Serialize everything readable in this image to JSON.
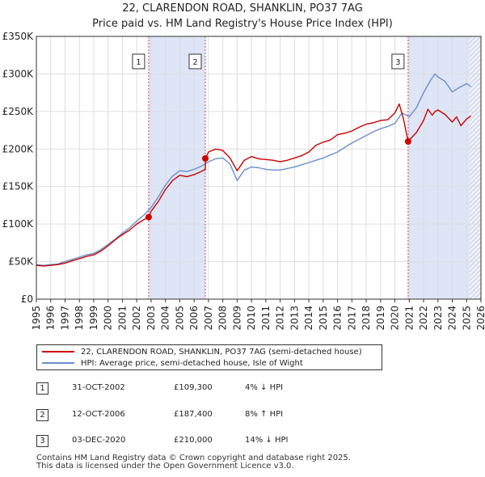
{
  "chart_data": {
    "type": "line",
    "title": "22, CLARENDON ROAD, SHANKLIN, PO37 7AG",
    "subtitle": "Price paid vs. HM Land Registry's House Price Index (HPI)",
    "xlim": [
      1995,
      2026
    ],
    "ylim": [
      0,
      350000
    ],
    "x_ticks": [
      1995,
      1996,
      1997,
      1998,
      1999,
      2000,
      2001,
      2002,
      2003,
      2004,
      2005,
      2006,
      2007,
      2008,
      2009,
      2010,
      2011,
      2012,
      2013,
      2014,
      2015,
      2016,
      2017,
      2018,
      2019,
      2020,
      2021,
      2022,
      2023,
      2024,
      2025,
      2026
    ],
    "y_ticks": [
      {
        "value": 0,
        "label": "£0"
      },
      {
        "value": 50000,
        "label": "£50K"
      },
      {
        "value": 100000,
        "label": "£100K"
      },
      {
        "value": 150000,
        "label": "£150K"
      },
      {
        "value": 200000,
        "label": "£200K"
      },
      {
        "value": 250000,
        "label": "£250K"
      },
      {
        "value": 300000,
        "label": "£300K"
      },
      {
        "value": 350000,
        "label": "£350K"
      }
    ],
    "grid": true,
    "hatch_from": 2025.2,
    "colors": {
      "property": "#cc0000",
      "hpi": "#6b8fcf",
      "shade": "#dde5f7",
      "vline": "#cc4466"
    },
    "shaded_periods": [
      [
        2002.83,
        2006.78
      ],
      [
        2020.92,
        2025.2
      ]
    ],
    "series": [
      {
        "name": "22, CLARENDON ROAD, SHANKLIN, PO37 7AG (semi-detached house)",
        "color": "#cc0000",
        "x": [
          1995.0,
          1995.5,
          1996.0,
          1996.5,
          1997.0,
          1997.5,
          1998.0,
          1998.5,
          1999.0,
          1999.5,
          2000.0,
          2000.5,
          2001.0,
          2001.5,
          2002.0,
          2002.5,
          2002.83,
          2003.0,
          2003.5,
          2004.0,
          2004.5,
          2005.0,
          2005.5,
          2006.0,
          2006.5,
          2006.78,
          2006.79,
          2007.0,
          2007.5,
          2008.0,
          2008.5,
          2009.0,
          2009.5,
          2010.0,
          2010.5,
          2011.0,
          2011.5,
          2012.0,
          2012.5,
          2013.0,
          2013.5,
          2014.0,
          2014.5,
          2015.0,
          2015.5,
          2016.0,
          2016.5,
          2017.0,
          2017.5,
          2018.0,
          2018.5,
          2019.0,
          2019.5,
          2020.0,
          2020.3,
          2020.6,
          2020.92,
          2020.93,
          2021.0,
          2021.5,
          2022.0,
          2022.3,
          2022.6,
          2022.8,
          2023.0,
          2023.5,
          2024.0,
          2024.3,
          2024.6,
          2025.0,
          2025.3
        ],
        "y": [
          45000,
          44000,
          45000,
          46000,
          48000,
          51000,
          54000,
          57000,
          59000,
          64000,
          71000,
          79000,
          86000,
          92000,
          100000,
          106000,
          109300,
          117000,
          130000,
          146000,
          158000,
          165000,
          163000,
          166000,
          170000,
          173000,
          187400,
          196000,
          200000,
          198000,
          188000,
          171000,
          185000,
          190000,
          187000,
          186000,
          185000,
          183000,
          185000,
          188000,
          191000,
          196000,
          205000,
          209000,
          212000,
          219000,
          221000,
          224000,
          229000,
          233000,
          235000,
          238000,
          239000,
          248000,
          260000,
          240000,
          210000,
          212000,
          212000,
          222000,
          238000,
          253000,
          245000,
          250000,
          252000,
          246000,
          236000,
          243000,
          231000,
          240000,
          244000
        ]
      },
      {
        "name": "HPI: Average price, semi-detached house, Isle of Wight",
        "color": "#6b8fcf",
        "x": [
          1995.0,
          1995.5,
          1996.0,
          1996.5,
          1997.0,
          1997.5,
          1998.0,
          1998.5,
          1999.0,
          1999.5,
          2000.0,
          2000.5,
          2001.0,
          2001.5,
          2002.0,
          2002.5,
          2003.0,
          2003.5,
          2004.0,
          2004.5,
          2005.0,
          2005.5,
          2006.0,
          2006.5,
          2007.0,
          2007.5,
          2008.0,
          2008.5,
          2009.0,
          2009.5,
          2010.0,
          2010.5,
          2011.0,
          2011.5,
          2012.0,
          2012.5,
          2013.0,
          2013.5,
          2014.0,
          2014.5,
          2015.0,
          2015.5,
          2016.0,
          2016.5,
          2017.0,
          2017.5,
          2018.0,
          2018.5,
          2019.0,
          2019.5,
          2020.0,
          2020.5,
          2021.0,
          2021.5,
          2022.0,
          2022.5,
          2022.8,
          2023.0,
          2023.5,
          2024.0,
          2024.5,
          2025.0,
          2025.3
        ],
        "y": [
          46000,
          45000,
          46000,
          47000,
          50000,
          53000,
          56000,
          59000,
          61000,
          66000,
          73000,
          80000,
          88000,
          95000,
          104000,
          112000,
          122000,
          136000,
          152000,
          164000,
          171000,
          170000,
          173000,
          177000,
          183000,
          187000,
          188000,
          180000,
          158000,
          172000,
          176000,
          175000,
          173000,
          172000,
          172000,
          174000,
          176000,
          179000,
          182000,
          185000,
          188000,
          192000,
          196000,
          202000,
          208000,
          213000,
          218000,
          223000,
          227000,
          230000,
          234000,
          248000,
          243000,
          255000,
          275000,
          292000,
          300000,
          296000,
          290000,
          276000,
          282000,
          287000,
          283000
        ]
      }
    ],
    "sales": [
      {
        "label": "1",
        "date": "31-OCT-2002",
        "x": 2002.83,
        "price": 109300,
        "price_text": "£109,300",
        "hpi_text": "4% ↓ HPI"
      },
      {
        "label": "2",
        "date": "12-OCT-2006",
        "x": 2006.78,
        "price": 187400,
        "price_text": "£187,400",
        "hpi_text": "8% ↑ HPI"
      },
      {
        "label": "3",
        "date": "03-DEC-2020",
        "x": 2020.92,
        "price": 210000,
        "price_text": "£210,000",
        "hpi_text": "14% ↓ HPI"
      }
    ]
  },
  "footer": {
    "line1": "Contains HM Land Registry data © Crown copyright and database right 2025.",
    "line2": "This data is licensed under the Open Government Licence v3.0."
  }
}
